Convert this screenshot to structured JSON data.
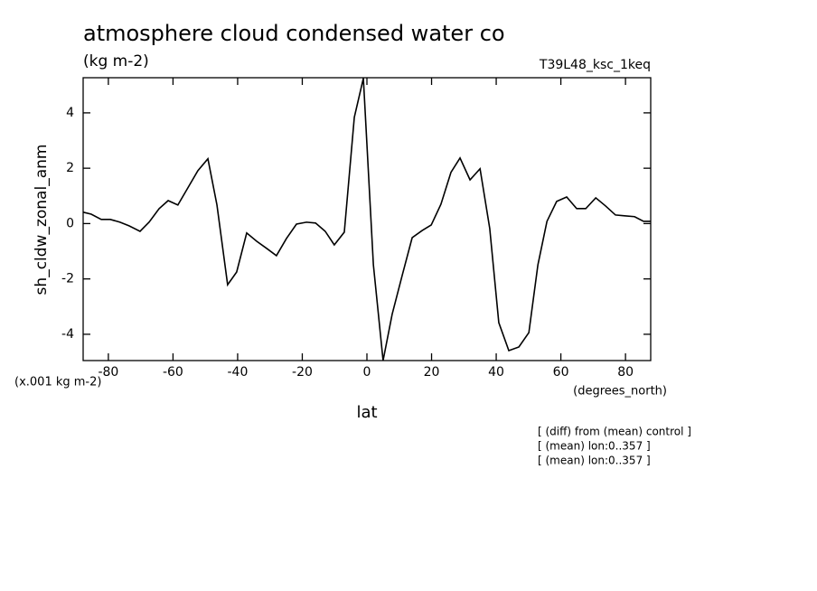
{
  "chart_data": {
    "type": "line",
    "title": "atmosphere cloud condensed water co",
    "subtitle": "(kg m-2)",
    "experiment_label": "T39L48_ksc_1keq",
    "y_label": "sh_cldw_zonal_anm",
    "y_units_label": "(x.001 kg m-2)",
    "x_units_label": "(degrees_north)",
    "x_label": "lat",
    "annotations": [
      "[ (diff) from (mean) control ]",
      "[ (mean) lon:0..357 ]",
      "[ (mean) lon:0..357 ]"
    ],
    "x": [
      -87.8,
      -85.3,
      -82.2,
      -79.4,
      -76.4,
      -73.6,
      -70.2,
      -67.4,
      -64.3,
      -61.5,
      -58.5,
      -55.4,
      -52.3,
      -49.2,
      -46.4,
      -43.1,
      -40.3,
      -37.2,
      -34.1,
      -31.0,
      -28.0,
      -24.9,
      -21.8,
      -18.7,
      -15.9,
      -12.9,
      -10.1,
      -7.0,
      -3.9,
      -1.1,
      2.0,
      5.0,
      7.8,
      10.9,
      14.0,
      17.1,
      19.9,
      22.9,
      26.0,
      28.8,
      31.9,
      35.0,
      38.0,
      40.8,
      43.9,
      47.0,
      50.1,
      52.9,
      55.7,
      58.7,
      61.8,
      64.9,
      67.7,
      70.8,
      73.8,
      76.9,
      79.7,
      82.8,
      85.6,
      87.8
    ],
    "series": [
      {
        "name": "sh_cldw_zonal_anm",
        "color": "#000000",
        "values": [
          0.41,
          0.34,
          0.15,
          0.15,
          0.05,
          -0.08,
          -0.28,
          0.05,
          0.54,
          0.83,
          0.67,
          1.29,
          1.91,
          2.34,
          0.67,
          -2.21,
          -1.75,
          -0.34,
          -0.64,
          -0.9,
          -1.16,
          -0.54,
          -0.02,
          0.05,
          0.02,
          -0.28,
          -0.77,
          -0.31,
          3.84,
          5.25,
          -1.49,
          -4.95,
          -3.28,
          -1.88,
          -0.51,
          -0.25,
          -0.05,
          0.7,
          1.85,
          2.37,
          1.58,
          1.98,
          -0.18,
          -3.58,
          -4.59,
          -4.46,
          -3.94,
          -1.49,
          0.08,
          0.8,
          0.96,
          0.54,
          0.54,
          0.93,
          0.64,
          0.31,
          0.28,
          0.25,
          0.08,
          0.08
        ]
      }
    ],
    "xlim": [
      -87.8,
      87.8
    ],
    "ylim": [
      -4.95,
      5.27
    ],
    "xticks": [
      -80,
      -60,
      -40,
      -20,
      0,
      20,
      40,
      60,
      80
    ],
    "yticks": [
      -4,
      -2,
      0,
      2,
      4
    ],
    "grid": false
  }
}
